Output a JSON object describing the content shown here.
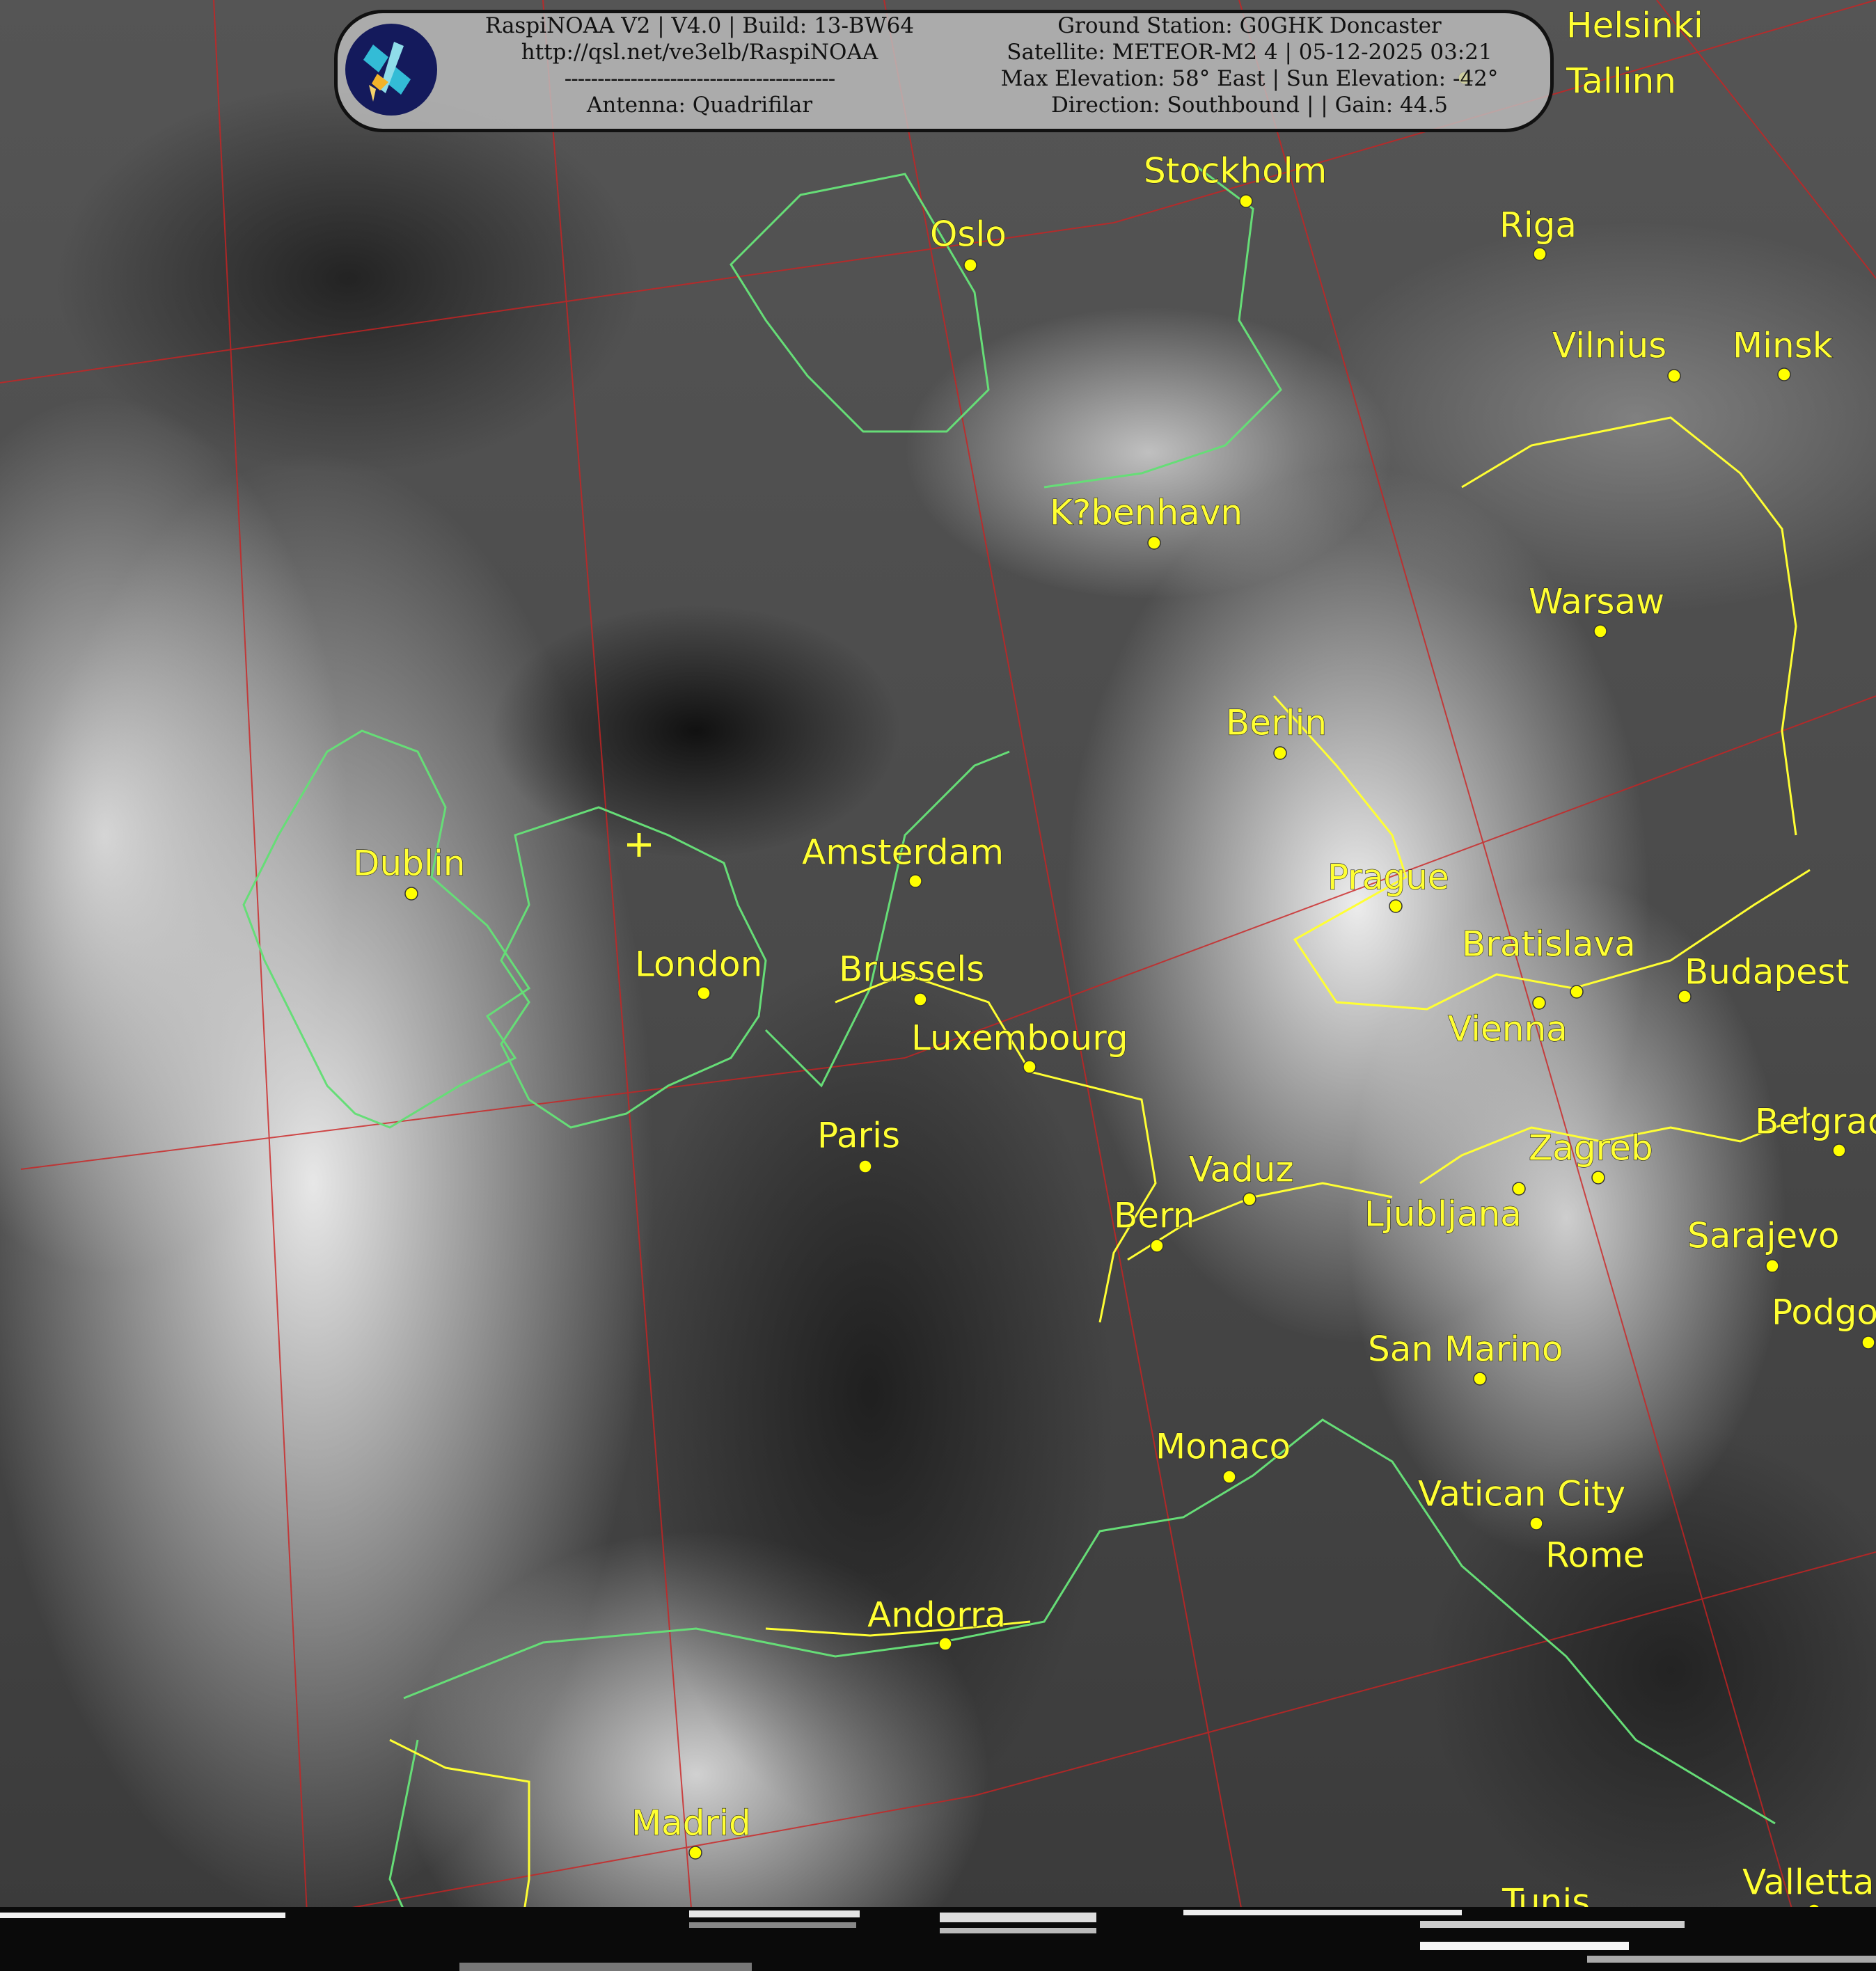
{
  "header": {
    "left_lines": [
      "RaspiNOAA V2 | V4.0 | Build: 13-BW64",
      "http://qsl.net/ve3elb/RaspiNOAA",
      "-----------------------------------------",
      "Antenna: Quadrifilar"
    ],
    "right_lines": [
      "Ground Station: G0GHK Doncaster",
      "Satellite: METEOR-M2 4 | 05-12-2025 03:21",
      "Max Elevation: 58° East | Sun Elevation: -42°",
      "Direction: Southbound | | Gain: 44.5"
    ],
    "logo_icon": "satellite-icon"
  },
  "map": {
    "colors": {
      "city": "#ffff00",
      "coastline": "#66dd77",
      "border": "#ffff33",
      "graticule": "#cc2222"
    },
    "ground_station_marker": "plus-icon",
    "cities": [
      "Helsinki",
      "Tallinn",
      "Stockholm",
      "Oslo",
      "Riga",
      "Vilnius",
      "Minsk",
      "K?benhavn",
      "Warsaw",
      "Berlin",
      "Dublin",
      "Amsterdam",
      "Prague",
      "London",
      "Brussels",
      "Bratislava",
      "Vienna",
      "Budapest",
      "Luxembourg",
      "Paris",
      "Belgrade",
      "Vaduz",
      "Ljubljana",
      "Zagreb",
      "Bern",
      "Sarajevo",
      "Podgorica",
      "San Marino",
      "Monaco",
      "Vatican City",
      "Rome",
      "Andorra",
      "Madrid",
      "Tunis",
      "Valletta"
    ]
  }
}
